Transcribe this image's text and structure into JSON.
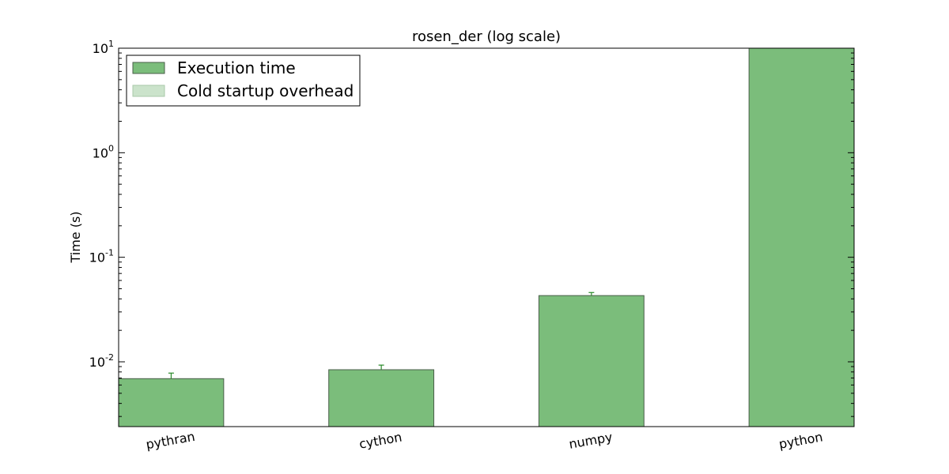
{
  "chart_data": {
    "type": "bar",
    "title": "rosen_der (log scale)",
    "xlabel": "",
    "ylabel": "Time (s)",
    "yscale": "log",
    "ylim": [
      0.0024,
      10
    ],
    "categories": [
      "pythran",
      "cython",
      "numpy",
      "python"
    ],
    "series": [
      {
        "name": "Execution time",
        "color": "#7bbd7b",
        "values": [
          0.0069,
          0.0084,
          0.043,
          10
        ],
        "error_upper": [
          0.0078,
          0.0093,
          0.046,
          null
        ]
      },
      {
        "name": "Cold startup overhead",
        "color": "#cbe3cb",
        "values": [
          0,
          0,
          0,
          0
        ]
      }
    ],
    "yticks": [
      {
        "value": 0.01,
        "base": "10",
        "exp": "-2"
      },
      {
        "value": 0.1,
        "base": "10",
        "exp": "-1"
      },
      {
        "value": 1,
        "base": "10",
        "exp": "0"
      },
      {
        "value": 10,
        "base": "10",
        "exp": "1"
      }
    ],
    "legend_position": "top-left",
    "grid": false,
    "colors": {
      "bar_edge": "#4a5e4a",
      "error_bar": "#2a8a2a",
      "axis": "#000000"
    }
  }
}
